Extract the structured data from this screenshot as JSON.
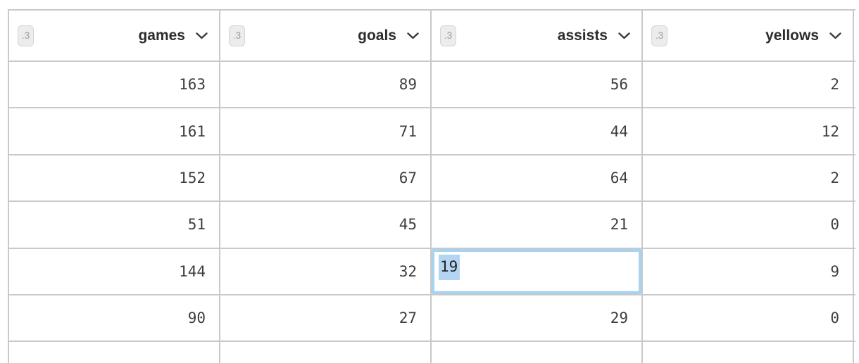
{
  "table": {
    "columns": [
      {
        "id": "games",
        "label": "games",
        "type_badge": ".3"
      },
      {
        "id": "goals",
        "label": "goals",
        "type_badge": ".3"
      },
      {
        "id": "assists",
        "label": "assists",
        "type_badge": ".3"
      },
      {
        "id": "yellows",
        "label": "yellows",
        "type_badge": ".3"
      }
    ],
    "rows": [
      [
        "163",
        "89",
        "56",
        "2"
      ],
      [
        "161",
        "71",
        "44",
        "12"
      ],
      [
        "152",
        "67",
        "64",
        "2"
      ],
      [
        "51",
        "45",
        "21",
        "0"
      ],
      [
        "144",
        "32",
        "19",
        "9"
      ],
      [
        "90",
        "27",
        "29",
        "0"
      ]
    ],
    "partial_row_visible": true,
    "editing": {
      "row_index": 4,
      "col_index": 2,
      "value": "19",
      "text_selected": true
    }
  },
  "icons": {
    "column_menu": "chevron-down"
  },
  "colors": {
    "background": "#ffffff",
    "grid_border": "#c9c9c9",
    "cell_text": "#3d3d3d",
    "header_text": "#2d2d2d",
    "badge_bg": "#ececec",
    "badge_border": "#d5d5d5",
    "badge_text": "#9e9e9e",
    "edit_cell_border": "#a7d3ef",
    "selection_highlight": "#b4d5f2"
  }
}
